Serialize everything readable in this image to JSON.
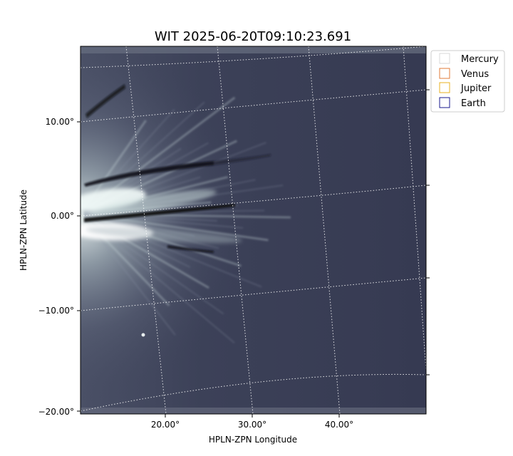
{
  "chart_data": {
    "type": "heatmap",
    "title": "WIT 2025-06-20T09:10:23.691",
    "xlabel": "HPLN-ZPN Longitude",
    "ylabel": "HPLN-ZPN Latitude",
    "x_ticks": [
      "20.00°",
      "30.00°",
      "40.00°"
    ],
    "y_ticks": [
      "10.00°",
      "0.00°",
      "−10.00°",
      "−20.00°"
    ],
    "xlim": [
      10.3,
      49.6
    ],
    "ylim": [
      -20.0,
      17.6
    ],
    "grid": true,
    "colormap": "bone",
    "legend_position": "outside-upper-right",
    "legend": [
      {
        "name": "Mercury",
        "color": "#d8d8d8"
      },
      {
        "name": "Venus",
        "color": "#e07b39"
      },
      {
        "name": "Jupiter",
        "color": "#e8b020"
      },
      {
        "name": "Earth",
        "color": "#1a1a8c"
      }
    ]
  }
}
